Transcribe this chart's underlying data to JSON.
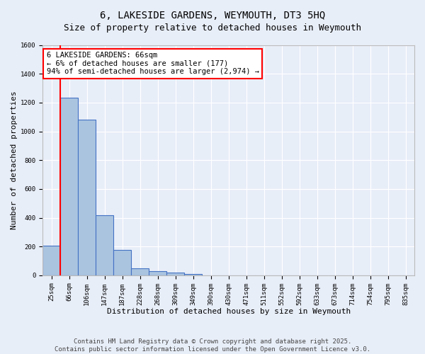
{
  "title": "6, LAKESIDE GARDENS, WEYMOUTH, DT3 5HQ",
  "subtitle": "Size of property relative to detached houses in Weymouth",
  "xlabel": "Distribution of detached houses by size in Weymouth",
  "ylabel": "Number of detached properties",
  "categories": [
    "25sqm",
    "66sqm",
    "106sqm",
    "147sqm",
    "187sqm",
    "228sqm",
    "268sqm",
    "309sqm",
    "349sqm",
    "390sqm",
    "430sqm",
    "471sqm",
    "511sqm",
    "552sqm",
    "592sqm",
    "633sqm",
    "673sqm",
    "714sqm",
    "754sqm",
    "795sqm",
    "835sqm"
  ],
  "values": [
    205,
    1235,
    1080,
    415,
    178,
    47,
    27,
    18,
    10,
    0,
    0,
    0,
    0,
    0,
    0,
    0,
    0,
    0,
    0,
    0,
    0
  ],
  "bar_color": "#aac4e0",
  "bar_edge_color": "#4472c4",
  "highlight_color": "#ff0000",
  "annotation_text": "6 LAKESIDE GARDENS: 66sqm\n← 6% of detached houses are smaller (177)\n94% of semi-detached houses are larger (2,974) →",
  "annotation_box_color": "#ffffff",
  "annotation_box_edge_color": "#ff0000",
  "vline_index": 1,
  "ylim": [
    0,
    1600
  ],
  "yticks": [
    0,
    200,
    400,
    600,
    800,
    1000,
    1200,
    1400,
    1600
  ],
  "background_color": "#e8eef8",
  "grid_color": "#ffffff",
  "footer_text": "Contains HM Land Registry data © Crown copyright and database right 2025.\nContains public sector information licensed under the Open Government Licence v3.0.",
  "title_fontsize": 10,
  "xlabel_fontsize": 8,
  "ylabel_fontsize": 8,
  "tick_fontsize": 6.5,
  "annotation_fontsize": 7.5,
  "footer_fontsize": 6.5
}
